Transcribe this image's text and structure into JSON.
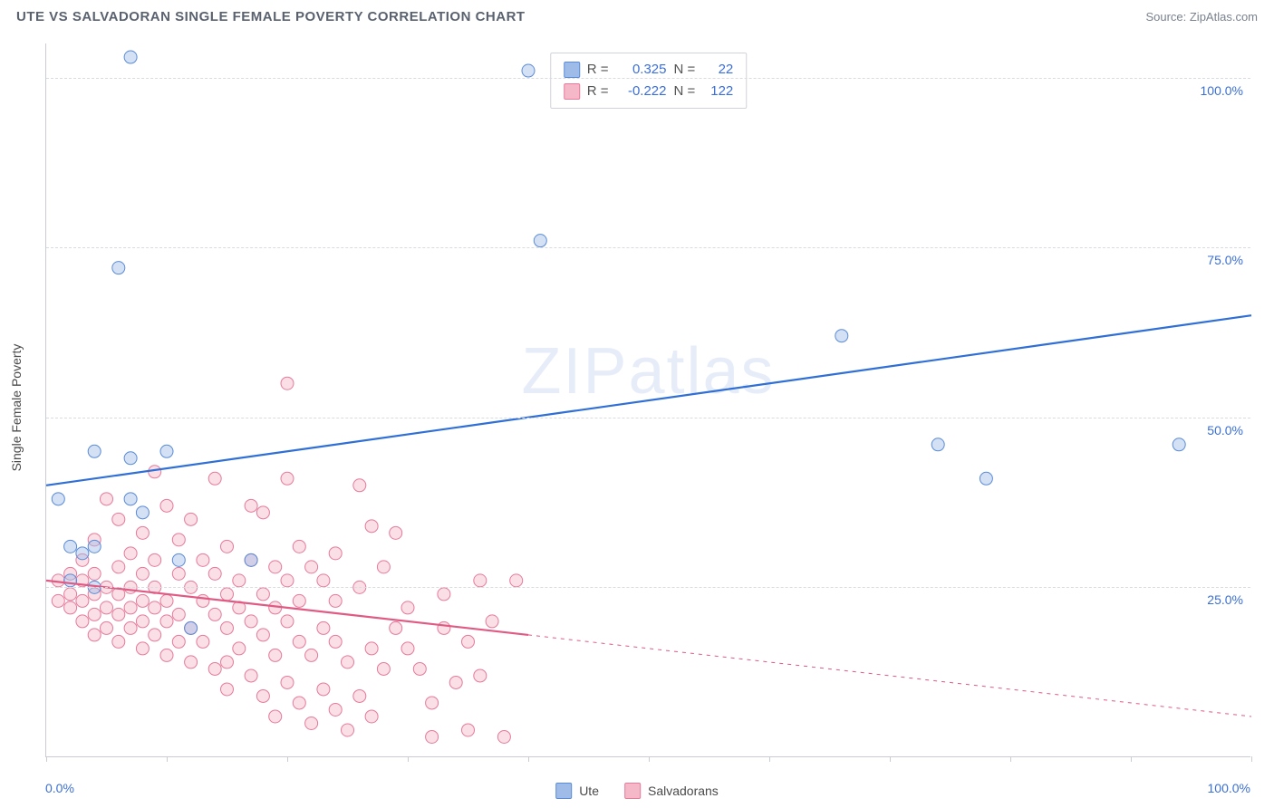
{
  "title": "UTE VS SALVADORAN SINGLE FEMALE POVERTY CORRELATION CHART",
  "source_label": "Source: ZipAtlas.com",
  "watermark": "ZIPatlas",
  "y_axis_label": "Single Female Poverty",
  "chart": {
    "type": "scatter-with-trendlines",
    "xlim": [
      0,
      100
    ],
    "ylim": [
      0,
      105
    ],
    "x_ticks": [
      0,
      10,
      20,
      30,
      40,
      50,
      60,
      70,
      80,
      90,
      100
    ],
    "x_tick_labels": {
      "0": "0.0%",
      "100": "100.0%"
    },
    "y_gridlines": [
      25,
      50,
      75,
      100
    ],
    "y_tick_labels": {
      "25": "25.0%",
      "50": "50.0%",
      "75": "75.0%",
      "100": "100.0%"
    },
    "background_color": "#ffffff",
    "grid_color": "#d8dbe0",
    "axis_color": "#c9ccd2",
    "label_color": "#3b6fd6",
    "marker_radius": 7,
    "marker_opacity": 0.45,
    "trendline_width": 2.2
  },
  "series": {
    "ute": {
      "label": "Ute",
      "color_fill": "#9fbce8",
      "color_stroke": "#5a8bd6",
      "trend_color": "#2f6fd6",
      "R": "0.325",
      "N": "22",
      "trendline": {
        "x1": 0,
        "y1": 40,
        "x2": 100,
        "y2": 65,
        "solid_until": 100
      },
      "points": [
        [
          7,
          103
        ],
        [
          40,
          101
        ],
        [
          41,
          76
        ],
        [
          6,
          72
        ],
        [
          66,
          62
        ],
        [
          94,
          46
        ],
        [
          78,
          41
        ],
        [
          74,
          46
        ],
        [
          4,
          45
        ],
        [
          7,
          44
        ],
        [
          10,
          45
        ],
        [
          7,
          38
        ],
        [
          1,
          38
        ],
        [
          2,
          31
        ],
        [
          4,
          31
        ],
        [
          3,
          30
        ],
        [
          11,
          29
        ],
        [
          17,
          29
        ],
        [
          2,
          26
        ],
        [
          4,
          25
        ],
        [
          8,
          36
        ],
        [
          12,
          19
        ]
      ]
    },
    "salvadorans": {
      "label": "Salvadorans",
      "color_fill": "#f5b8c8",
      "color_stroke": "#e67a9a",
      "trend_color": "#e05a84",
      "R": "-0.222",
      "N": "122",
      "trendline": {
        "x1": 0,
        "y1": 26,
        "x2": 100,
        "y2": 6,
        "solid_until": 40
      },
      "points": [
        [
          20,
          55
        ],
        [
          9,
          42
        ],
        [
          14,
          41
        ],
        [
          20,
          41
        ],
        [
          26,
          40
        ],
        [
          5,
          38
        ],
        [
          10,
          37
        ],
        [
          17,
          37
        ],
        [
          6,
          35
        ],
        [
          12,
          35
        ],
        [
          18,
          36
        ],
        [
          27,
          34
        ],
        [
          29,
          33
        ],
        [
          8,
          33
        ],
        [
          4,
          32
        ],
        [
          11,
          32
        ],
        [
          15,
          31
        ],
        [
          21,
          31
        ],
        [
          24,
          30
        ],
        [
          7,
          30
        ],
        [
          3,
          29
        ],
        [
          9,
          29
        ],
        [
          13,
          29
        ],
        [
          17,
          29
        ],
        [
          19,
          28
        ],
        [
          22,
          28
        ],
        [
          6,
          28
        ],
        [
          2,
          27
        ],
        [
          4,
          27
        ],
        [
          8,
          27
        ],
        [
          11,
          27
        ],
        [
          14,
          27
        ],
        [
          16,
          26
        ],
        [
          20,
          26
        ],
        [
          23,
          26
        ],
        [
          26,
          25
        ],
        [
          39,
          26
        ],
        [
          1,
          26
        ],
        [
          3,
          26
        ],
        [
          5,
          25
        ],
        [
          7,
          25
        ],
        [
          9,
          25
        ],
        [
          12,
          25
        ],
        [
          15,
          24
        ],
        [
          18,
          24
        ],
        [
          21,
          23
        ],
        [
          24,
          23
        ],
        [
          2,
          24
        ],
        [
          4,
          24
        ],
        [
          6,
          24
        ],
        [
          8,
          23
        ],
        [
          10,
          23
        ],
        [
          13,
          23
        ],
        [
          16,
          22
        ],
        [
          19,
          22
        ],
        [
          1,
          23
        ],
        [
          3,
          23
        ],
        [
          5,
          22
        ],
        [
          7,
          22
        ],
        [
          9,
          22
        ],
        [
          11,
          21
        ],
        [
          14,
          21
        ],
        [
          17,
          20
        ],
        [
          20,
          20
        ],
        [
          23,
          19
        ],
        [
          2,
          22
        ],
        [
          4,
          21
        ],
        [
          6,
          21
        ],
        [
          8,
          20
        ],
        [
          10,
          20
        ],
        [
          12,
          19
        ],
        [
          15,
          19
        ],
        [
          18,
          18
        ],
        [
          21,
          17
        ],
        [
          24,
          17
        ],
        [
          27,
          16
        ],
        [
          3,
          20
        ],
        [
          5,
          19
        ],
        [
          7,
          19
        ],
        [
          9,
          18
        ],
        [
          11,
          17
        ],
        [
          13,
          17
        ],
        [
          16,
          16
        ],
        [
          19,
          15
        ],
        [
          22,
          15
        ],
        [
          25,
          14
        ],
        [
          28,
          13
        ],
        [
          4,
          18
        ],
        [
          6,
          17
        ],
        [
          8,
          16
        ],
        [
          10,
          15
        ],
        [
          12,
          14
        ],
        [
          14,
          13
        ],
        [
          17,
          12
        ],
        [
          20,
          11
        ],
        [
          23,
          10
        ],
        [
          26,
          9
        ],
        [
          15,
          10
        ],
        [
          18,
          9
        ],
        [
          21,
          8
        ],
        [
          24,
          7
        ],
        [
          27,
          6
        ],
        [
          19,
          6
        ],
        [
          22,
          5
        ],
        [
          25,
          4
        ],
        [
          32,
          3
        ],
        [
          35,
          4
        ],
        [
          38,
          3
        ],
        [
          33,
          19
        ],
        [
          30,
          22
        ],
        [
          28,
          28
        ],
        [
          31,
          13
        ],
        [
          34,
          11
        ],
        [
          36,
          26
        ],
        [
          32,
          8
        ],
        [
          35,
          17
        ],
        [
          29,
          19
        ],
        [
          37,
          20
        ],
        [
          30,
          16
        ],
        [
          33,
          24
        ],
        [
          36,
          12
        ],
        [
          15,
          14
        ]
      ]
    }
  },
  "bottom_legend": [
    {
      "key": "ute",
      "label": "Ute"
    },
    {
      "key": "salvadorans",
      "label": "Salvadorans"
    }
  ]
}
